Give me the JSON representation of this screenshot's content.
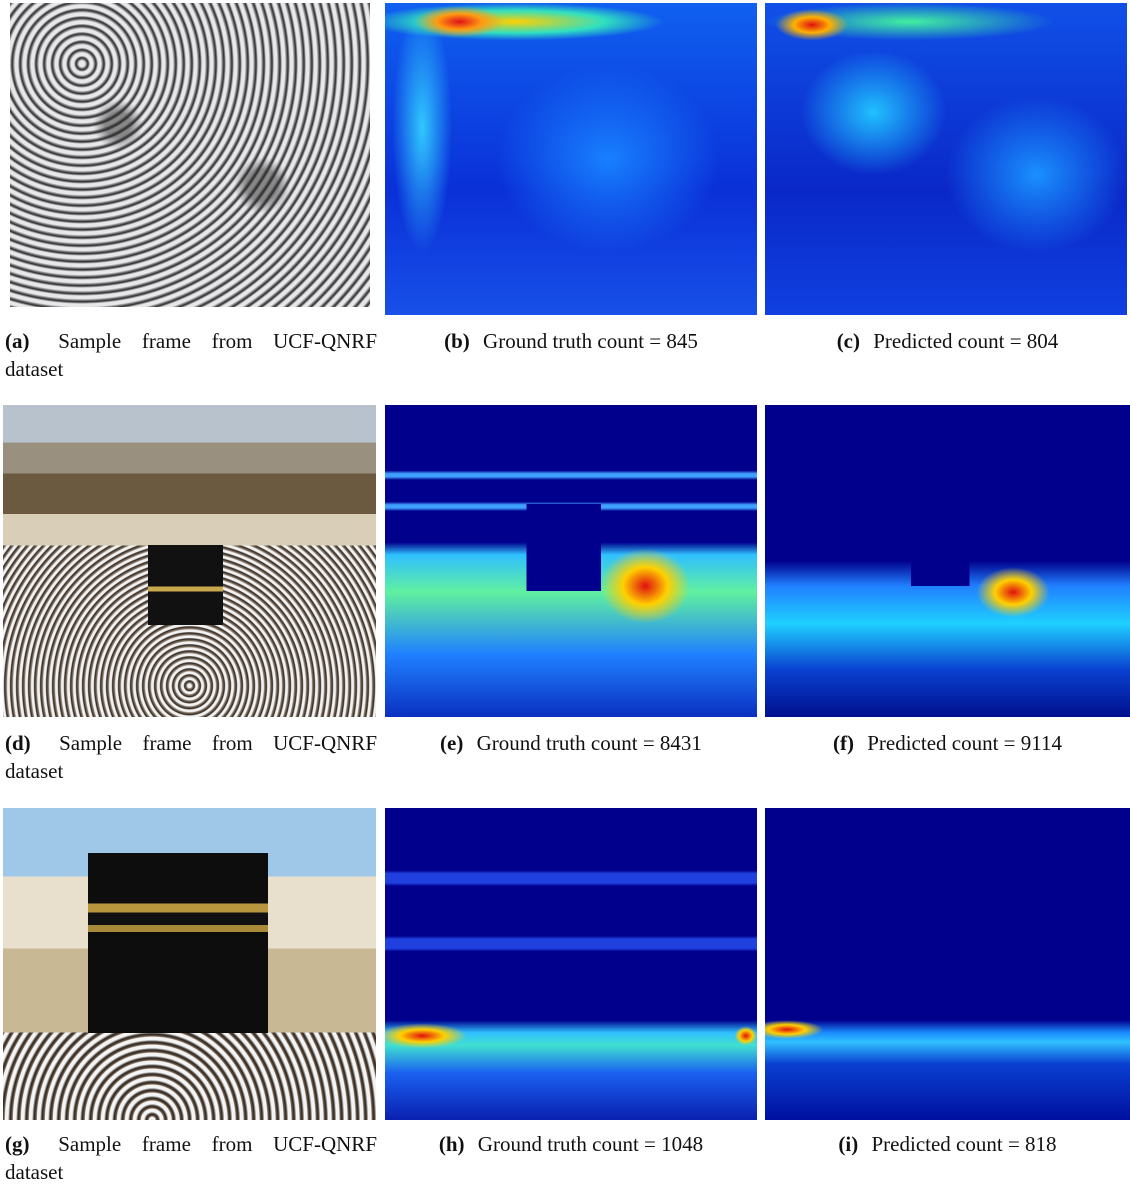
{
  "panels": [
    {
      "label": "(a)",
      "caption": "Sample frame from UCF-QNRF dataset"
    },
    {
      "label": "(b)",
      "caption": "Ground truth count = 845"
    },
    {
      "label": "(c)",
      "caption": "Predicted count = 804"
    },
    {
      "label": "(d)",
      "caption": "Sample frame from UCF-QNRF dataset"
    },
    {
      "label": "(e)",
      "caption": "Ground truth count = 8431"
    },
    {
      "label": "(f)",
      "caption": "Predicted count = 9114"
    },
    {
      "label": "(g)",
      "caption": "Sample frame from UCF-QNRF dataset"
    },
    {
      "label": "(h)",
      "caption": "Ground truth count = 1048"
    },
    {
      "label": "(i)",
      "caption": "Predicted count = 818"
    }
  ]
}
